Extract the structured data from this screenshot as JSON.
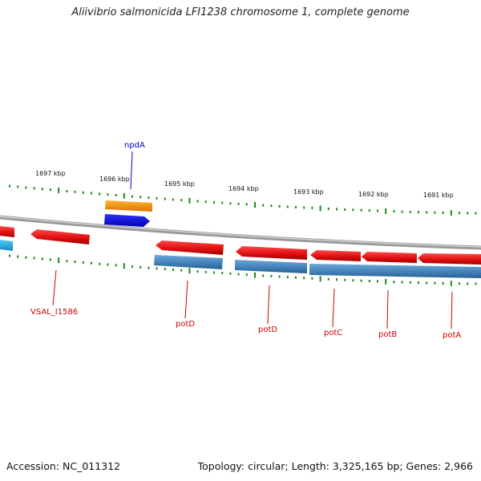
{
  "title": "Aliivibrio salmonicida LFI1238 chromosome 1, complete genome",
  "footer": {
    "accession": "Accession: NC_011312",
    "summary": "Topology: circular; Length: 3,325,165 bp; Genes: 2,966"
  },
  "kbp_labels": [
    "1697 kbp",
    "1696 kbp",
    "1695 kbp",
    "1694 kbp",
    "1693 kbp",
    "1692 kbp",
    "1691 kbp"
  ],
  "gene_labels": {
    "npdA": "npdA",
    "VSAL_I1586": "VSAL_I1586",
    "potD_1": "potD",
    "potD_2": "potD",
    "potC": "potC",
    "potB": "potB",
    "potA": "potA"
  },
  "colors": {
    "gene_red": "#ee1111",
    "gene_blue": "#0000ee",
    "gene_orange": "#f59300",
    "gene_cyan": "#1aa3e0",
    "cds_steelblue": "#3f7fb6",
    "label_red": "#cc0000",
    "label_blue": "#0000cc",
    "tick_green": "#1a8a1a",
    "backbone": "#808080"
  }
}
